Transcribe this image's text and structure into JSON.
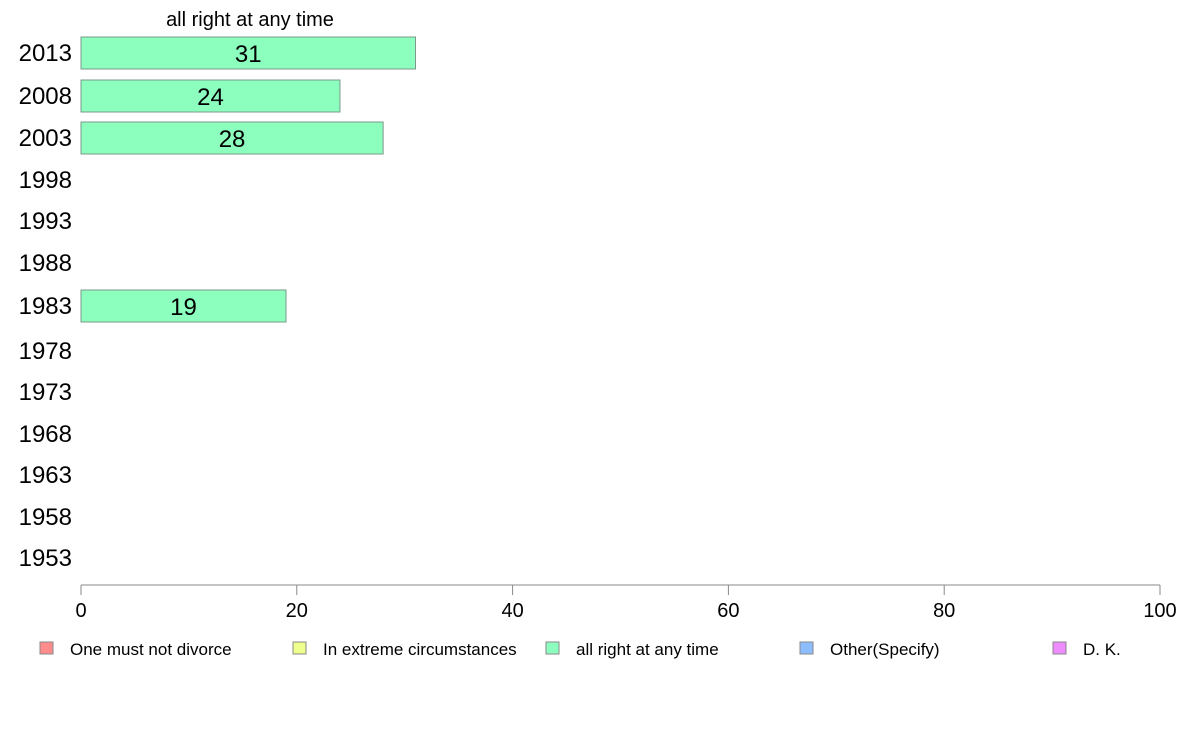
{
  "chart_data": {
    "type": "bar",
    "orientation": "horizontal",
    "title": "all right at any time",
    "categories": [
      "2013",
      "2008",
      "2003",
      "1998",
      "1993",
      "1988",
      "1983",
      "1978",
      "1973",
      "1968",
      "1963",
      "1958",
      "1953"
    ],
    "series": [
      {
        "name": "all right at any time",
        "values": [
          31,
          24,
          28,
          null,
          null,
          null,
          19,
          null,
          null,
          null,
          null,
          null,
          null
        ]
      }
    ],
    "xlim": [
      0,
      100
    ],
    "xticks": [
      "0",
      "20",
      "40",
      "60",
      "80",
      "100"
    ],
    "grid": false,
    "legend": {
      "placement": "bottom",
      "items": [
        {
          "label": "One must not divorce",
          "color": "#ff8c8c"
        },
        {
          "label": "In extreme circumstances",
          "color": "#eeff8c"
        },
        {
          "label": "all right at any time",
          "color": "#8cffbe"
        },
        {
          "label": "Other(Specify)",
          "color": "#8cbeff"
        },
        {
          "label": "D. K.",
          "color": "#ee8cff"
        }
      ]
    },
    "bar_color": "#8cffbe"
  }
}
